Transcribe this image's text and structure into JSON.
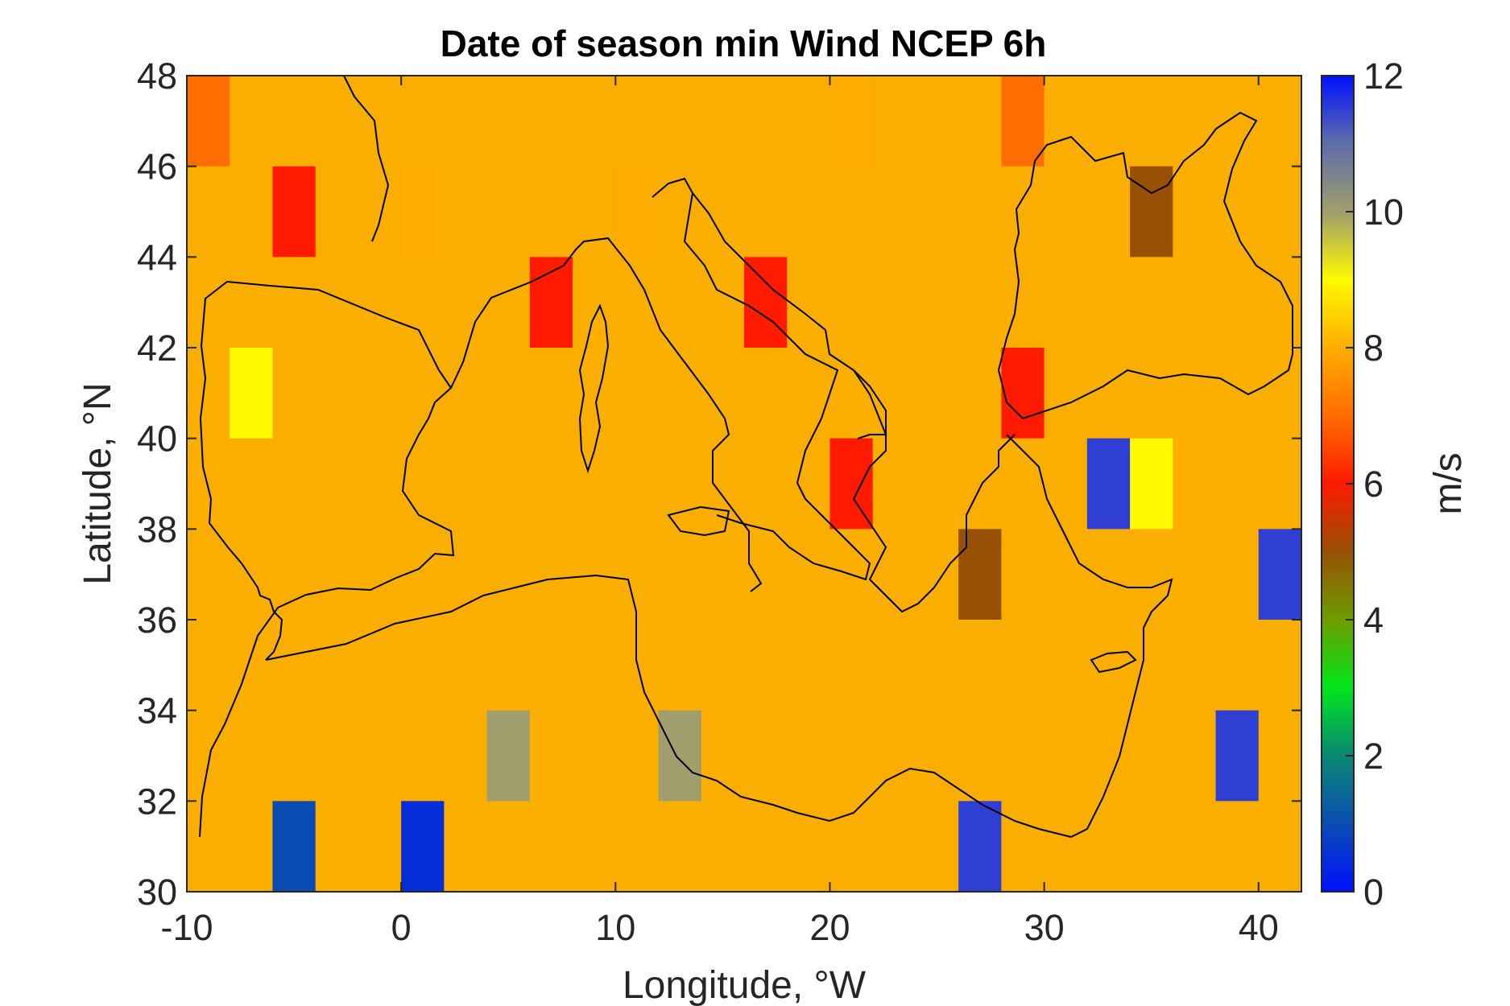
{
  "chart_data": {
    "type": "heatmap",
    "title": "Date of season min Wind NCEP 6h",
    "xlabel": "Longitude, °W",
    "ylabel": "Latitude, °N",
    "xlim": [
      -10,
      42
    ],
    "ylim": [
      30,
      48
    ],
    "xticks": [
      -10,
      0,
      10,
      20,
      30,
      40
    ],
    "yticks": [
      30,
      32,
      34,
      36,
      38,
      40,
      42,
      44,
      46,
      48
    ],
    "colorbar": {
      "label": "m/s",
      "range": [
        0,
        12
      ],
      "ticks": [
        0,
        2,
        4,
        6,
        8,
        10,
        12
      ]
    },
    "grid_spacing_deg": 2,
    "cells": [
      {
        "lon": -10,
        "lat": 46,
        "value": 7.0
      },
      {
        "lon": -6,
        "lat": 44,
        "value": 6.0
      },
      {
        "lon": 0,
        "lat": 44,
        "value": 8.0
      },
      {
        "lon": 10,
        "lat": 44,
        "value": 8.0
      },
      {
        "lon": 20,
        "lat": 46,
        "value": 8.0
      },
      {
        "lon": 28,
        "lat": 46,
        "value": 7.0
      },
      {
        "lon": 34,
        "lat": 44,
        "value": 5.0
      },
      {
        "lon": -8,
        "lat": 40,
        "value": 9.0
      },
      {
        "lon": 6,
        "lat": 42,
        "value": 6.0
      },
      {
        "lon": 16,
        "lat": 42,
        "value": 6.0
      },
      {
        "lon": 28,
        "lat": 40,
        "value": 6.0
      },
      {
        "lon": 34,
        "lat": 38,
        "value": 9.0
      },
      {
        "lon": 32,
        "lat": 38,
        "value": 11.5
      },
      {
        "lon": 40,
        "lat": 36,
        "value": 11.5
      },
      {
        "lon": 38,
        "lat": 32,
        "value": 11.5
      },
      {
        "lon": 4,
        "lat": 32,
        "value": 10.0
      },
      {
        "lon": 12,
        "lat": 32,
        "value": 10.0
      },
      {
        "lon": 0,
        "lat": 30,
        "value": 0.5
      },
      {
        "lon": -6,
        "lat": 30,
        "value": 1.0
      },
      {
        "lon": 26,
        "lat": 30,
        "value": 11.5
      },
      {
        "lon": 20,
        "lat": 38,
        "value": 6.0
      },
      {
        "lon": 26,
        "lat": 36,
        "value": 5.0
      }
    ]
  }
}
